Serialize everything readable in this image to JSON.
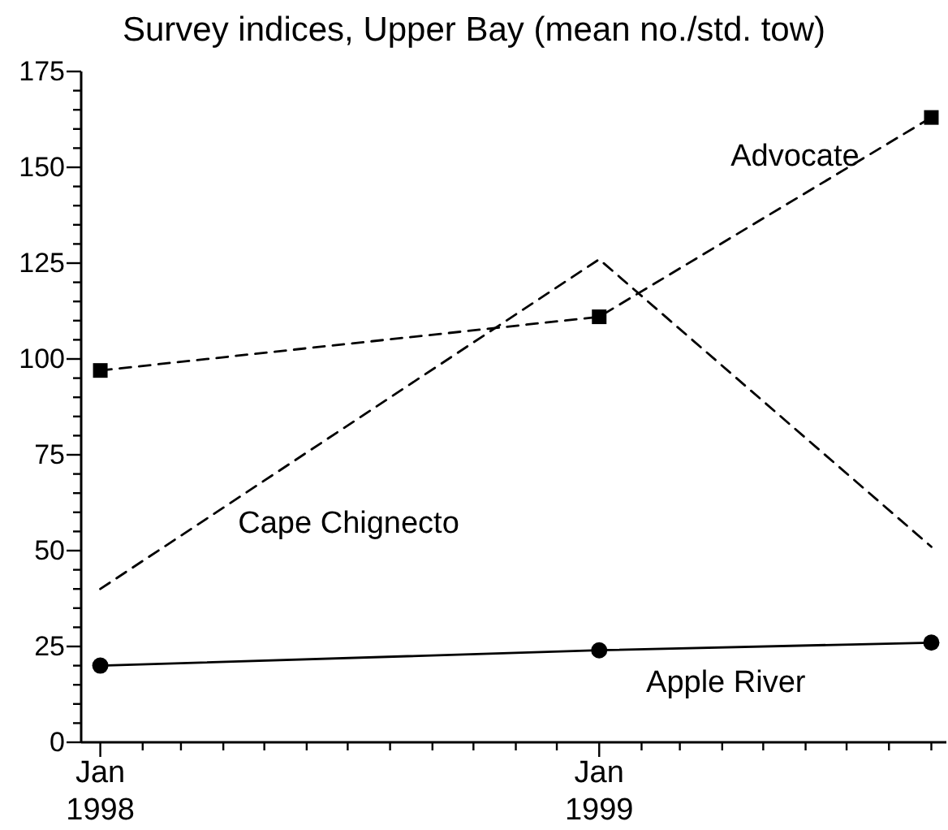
{
  "chart_data": {
    "type": "line",
    "title": "Survey indices, Upper Bay (mean no./std. tow)",
    "x": [
      "1998-01",
      "1999-01",
      "1999-09"
    ],
    "xlim": [
      "1997-12-18",
      "1999-09-12"
    ],
    "xticks": [
      {
        "value": "1998-01",
        "label": "Jan 1998"
      },
      {
        "value": "1998-02",
        "label": null
      },
      {
        "value": "1998-03",
        "label": null
      },
      {
        "value": "1998-04",
        "label": null
      },
      {
        "value": "1998-05",
        "label": null
      },
      {
        "value": "1998-06",
        "label": null
      },
      {
        "value": "1998-07",
        "label": null
      },
      {
        "value": "1998-08",
        "label": null
      },
      {
        "value": "1998-09",
        "label": null
      },
      {
        "value": "1998-10",
        "label": null
      },
      {
        "value": "1998-11",
        "label": null
      },
      {
        "value": "1998-12",
        "label": null
      },
      {
        "value": "1999-01",
        "label": "Jan 1999"
      },
      {
        "value": "1999-02",
        "label": null
      },
      {
        "value": "1999-03",
        "label": null
      },
      {
        "value": "1999-04",
        "label": null
      },
      {
        "value": "1999-05",
        "label": null
      },
      {
        "value": "1999-06",
        "label": null
      },
      {
        "value": "1999-07",
        "label": null
      },
      {
        "value": "1999-08",
        "label": null
      },
      {
        "value": "1999-09",
        "label": null
      }
    ],
    "ylim": [
      0,
      175
    ],
    "yticks": [
      0,
      {
        "value": 5,
        "label": null
      },
      {
        "value": 10,
        "label": null
      },
      {
        "value": 15,
        "label": null
      },
      {
        "value": 20,
        "label": null
      },
      25,
      {
        "value": 30,
        "label": null
      },
      {
        "value": 35,
        "label": null
      },
      {
        "value": 40,
        "label": null
      },
      {
        "value": 45,
        "label": null
      },
      50,
      {
        "value": 55,
        "label": null
      },
      {
        "value": 60,
        "label": null
      },
      {
        "value": 65,
        "label": null
      },
      {
        "value": 70,
        "label": null
      },
      75,
      {
        "value": 80,
        "label": null
      },
      {
        "value": 85,
        "label": null
      },
      {
        "value": 90,
        "label": null
      },
      {
        "value": 95,
        "label": null
      },
      100,
      {
        "value": 105,
        "label": null
      },
      {
        "value": 110,
        "label": null
      },
      {
        "value": 115,
        "label": null
      },
      {
        "value": 120,
        "label": null
      },
      125,
      {
        "value": 130,
        "label": null
      },
      {
        "value": 135,
        "label": null
      },
      {
        "value": 140,
        "label": null
      },
      {
        "value": 145,
        "label": null
      },
      150,
      {
        "value": 155,
        "label": null
      },
      {
        "value": 160,
        "label": null
      },
      {
        "value": 165,
        "label": null
      },
      {
        "value": 170,
        "label": null
      },
      175
    ],
    "series": [
      {
        "name": "Advocate",
        "color": "#000000",
        "values": [
          97,
          111,
          163
        ],
        "marker": "square",
        "line_style": "dashed"
      },
      {
        "name": "Cape Chignecto",
        "color": "#000000",
        "values": [
          40,
          126,
          51
        ],
        "marker": "none",
        "line_style": "dashed"
      },
      {
        "name": "Apple River",
        "color": "#000000",
        "values": [
          20,
          24,
          26
        ],
        "marker": "circle",
        "line_style": "solid"
      }
    ]
  }
}
